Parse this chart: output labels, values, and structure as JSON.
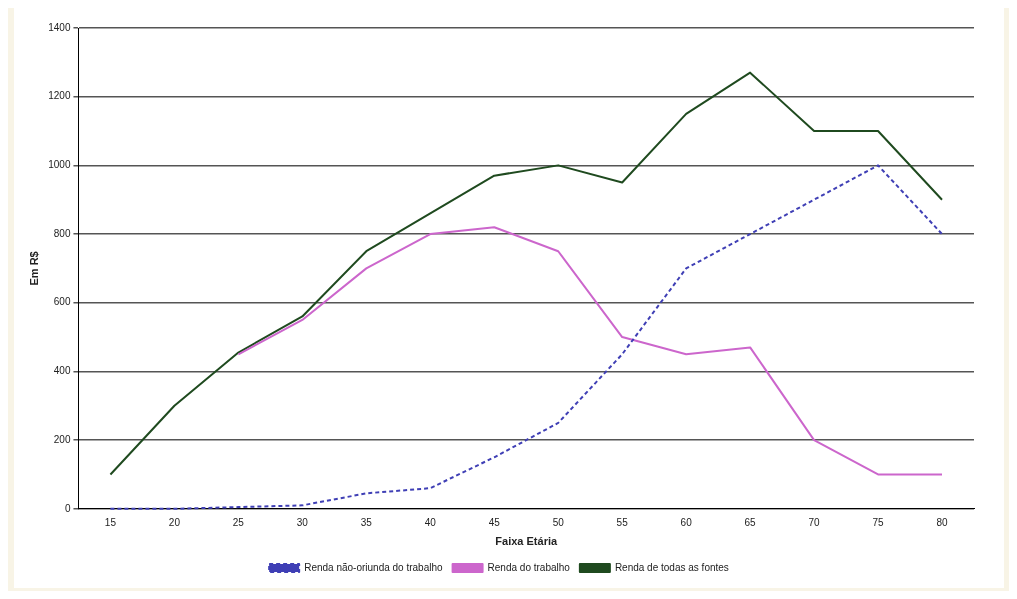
{
  "chart_data": {
    "type": "line",
    "xlabel": "Faixa Etária",
    "ylabel": "Em R$",
    "categories": [
      "15",
      "20",
      "25",
      "30",
      "35",
      "40",
      "45",
      "50",
      "55",
      "60",
      "65",
      "70",
      "75",
      "80"
    ],
    "series": [
      {
        "name": "Renda não-oriunda do trabalho",
        "color": "#3f3fb5",
        "line_style": "dashed",
        "values": [
          0,
          0,
          5,
          10,
          45,
          60,
          150,
          250,
          450,
          700,
          800,
          900,
          1000,
          800
        ]
      },
      {
        "name": "Renda do trabalho",
        "color": "#cc66cc",
        "line_style": "solid",
        "values": [
          null,
          null,
          450,
          550,
          700,
          800,
          820,
          750,
          500,
          450,
          470,
          200,
          100,
          100
        ]
      },
      {
        "name": "Renda de todas as fontes",
        "color": "#1f4a1f",
        "line_style": "solid",
        "values": [
          100,
          300,
          455,
          560,
          750,
          860,
          970,
          1000,
          950,
          1150,
          1270,
          1100,
          1100,
          900
        ]
      }
    ],
    "ylim": [
      0,
      1400
    ],
    "yticks": [
      0,
      200,
      400,
      600,
      800,
      1000,
      1200,
      1400
    ],
    "grid": "y",
    "legend": "bottom",
    "marker": "none"
  }
}
